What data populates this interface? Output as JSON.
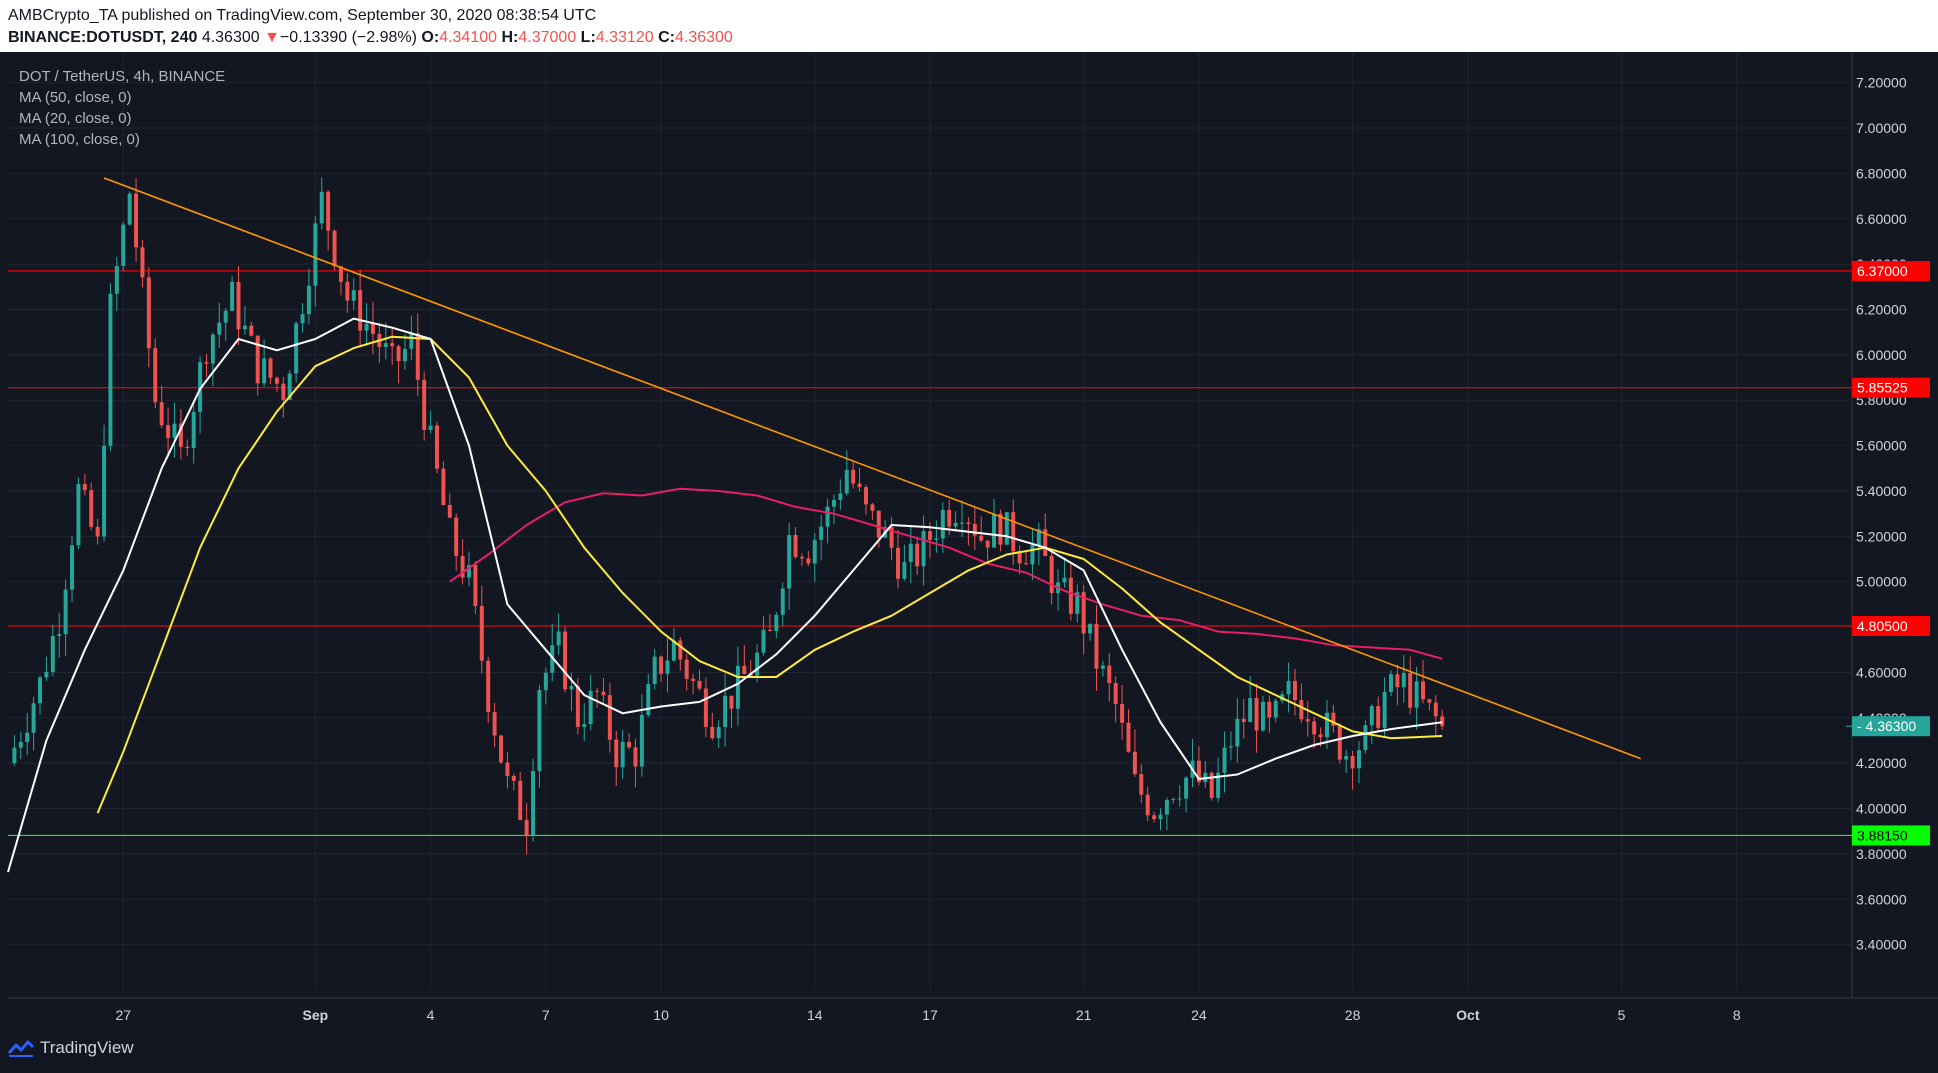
{
  "header": {
    "publisher_line": "AMBCrypto_TA published on TradingView.com, September 30, 2020 08:38:54 UTC",
    "symbol": "BINANCE:DOTUSDT, 240",
    "last": "4.36300",
    "change_arrow": "▼",
    "change": "−0.13390 (−2.98%)",
    "o_label": "O:",
    "o_value": "4.34100",
    "h_label": "H:",
    "h_value": "4.37000",
    "l_label": "L:",
    "l_value": "4.33120",
    "c_label": "C:",
    "c_value": "4.36300"
  },
  "legend": {
    "title": "DOT / TetherUS, 4h, BINANCE",
    "ma_items": [
      "MA (50, close, 0)",
      "MA (20, close, 0)",
      "MA (100, close, 0)"
    ]
  },
  "footer": {
    "brand": "TradingView",
    "logo_icon": "tradingview-logo-icon"
  },
  "colors": {
    "background": "#131722",
    "grid": "#1f2430",
    "axis_text": "#d1d4dc",
    "up": "#26a69a",
    "down": "#ef5350",
    "ma20": "#ffffff",
    "ma50": "#ffeb3b",
    "ma100": "#e91e63",
    "trendline": "#ff9800",
    "resistance": "#ff0000",
    "support": "#00ff00",
    "last_price_badge": "#26a69a"
  },
  "chart_data": {
    "type": "candlestick",
    "y_range": [
      3.2,
      7.3
    ],
    "y_ticks": [
      "7.20000",
      "7.00000",
      "6.80000",
      "6.60000",
      "6.40000",
      "6.20000",
      "6.00000",
      "5.80000",
      "5.60000",
      "5.40000",
      "5.20000",
      "5.00000",
      "4.80000",
      "4.60000",
      "4.40000",
      "4.20000",
      "4.00000",
      "3.80000",
      "3.60000",
      "3.40000"
    ],
    "x_range_days": [
      "2020-08-24",
      "2020-10-11"
    ],
    "x_ticks": [
      {
        "label": "27",
        "date": "2020-08-27"
      },
      {
        "label": "Sep",
        "date": "2020-09-01"
      },
      {
        "label": "4",
        "date": "2020-09-04"
      },
      {
        "label": "7",
        "date": "2020-09-07"
      },
      {
        "label": "10",
        "date": "2020-09-10"
      },
      {
        "label": "14",
        "date": "2020-09-14"
      },
      {
        "label": "17",
        "date": "2020-09-17"
      },
      {
        "label": "21",
        "date": "2020-09-21"
      },
      {
        "label": "24",
        "date": "2020-09-24"
      },
      {
        "label": "28",
        "date": "2020-09-28"
      },
      {
        "label": "Oct",
        "date": "2020-10-01"
      },
      {
        "label": "5",
        "date": "2020-10-05"
      },
      {
        "label": "8",
        "date": "2020-10-08"
      }
    ],
    "horizontal_levels": [
      {
        "price": 6.37,
        "label": "6.37000",
        "kind": "resistance"
      },
      {
        "price": 5.85525,
        "label": "5.85525",
        "kind": "resistance"
      },
      {
        "price": 4.805,
        "label": "4.80500",
        "kind": "resistance"
      },
      {
        "price": 3.8815,
        "label": "3.88150",
        "kind": "support"
      }
    ],
    "last_price": {
      "price": 4.363,
      "label": "4.36300"
    },
    "trendline": [
      [
        "2020-08-26 12:00",
        6.78
      ],
      [
        "2020-10-05 12:00",
        4.22
      ]
    ],
    "close_path": [
      [
        "2020-08-24 00:00",
        4.2
      ],
      [
        "2020-08-24 20:00",
        4.55
      ],
      [
        "2020-08-25 08:00",
        4.85
      ],
      [
        "2020-08-25 20:00",
        5.4
      ],
      [
        "2020-08-26 08:00",
        5.15
      ],
      [
        "2020-08-26 16:00",
        6.2
      ],
      [
        "2020-08-27 04:00",
        6.72
      ],
      [
        "2020-08-27 20:00",
        5.8
      ],
      [
        "2020-08-28 12:00",
        5.55
      ],
      [
        "2020-08-29 04:00",
        6.05
      ],
      [
        "2020-08-29 20:00",
        6.25
      ],
      [
        "2020-08-30 12:00",
        5.95
      ],
      [
        "2020-08-31 04:00",
        5.85
      ],
      [
        "2020-08-31 16:00",
        6.25
      ],
      [
        "2020-09-01 04:00",
        6.68
      ],
      [
        "2020-09-01 20:00",
        6.25
      ],
      [
        "2020-09-02 12:00",
        6.1
      ],
      [
        "2020-09-03 00:00",
        5.95
      ],
      [
        "2020-09-03 12:00",
        6.05
      ],
      [
        "2020-09-04 00:00",
        5.6
      ],
      [
        "2020-09-04 12:00",
        5.2
      ],
      [
        "2020-09-05 00:00",
        5.0
      ],
      [
        "2020-09-05 12:00",
        4.5
      ],
      [
        "2020-09-06 00:00",
        4.1
      ],
      [
        "2020-09-06 12:00",
        3.95
      ],
      [
        "2020-09-06 20:00",
        4.55
      ],
      [
        "2020-09-07 08:00",
        4.7
      ],
      [
        "2020-09-07 20:00",
        4.4
      ],
      [
        "2020-09-08 08:00",
        4.5
      ],
      [
        "2020-09-08 20:00",
        4.25
      ],
      [
        "2020-09-09 08:00",
        4.25
      ],
      [
        "2020-09-09 20:00",
        4.6
      ],
      [
        "2020-09-10 08:00",
        4.72
      ],
      [
        "2020-09-10 20:00",
        4.55
      ],
      [
        "2020-09-11 08:00",
        4.4
      ],
      [
        "2020-09-11 20:00",
        4.5
      ],
      [
        "2020-09-12 08:00",
        4.62
      ],
      [
        "2020-09-12 20:00",
        4.75
      ],
      [
        "2020-09-13 08:00",
        5.2
      ],
      [
        "2020-09-13 20:00",
        5.15
      ],
      [
        "2020-09-14 08:00",
        5.3
      ],
      [
        "2020-09-14 20:00",
        5.5
      ],
      [
        "2020-09-15 08:00",
        5.3
      ],
      [
        "2020-09-15 20:00",
        5.2
      ],
      [
        "2020-09-16 08:00",
        5.05
      ],
      [
        "2020-09-16 20:00",
        5.15
      ],
      [
        "2020-09-17 08:00",
        5.3
      ],
      [
        "2020-09-17 20:00",
        5.35
      ],
      [
        "2020-09-18 08:00",
        5.2
      ],
      [
        "2020-09-18 20:00",
        5.25
      ],
      [
        "2020-09-19 08:00",
        5.15
      ],
      [
        "2020-09-19 20:00",
        5.15
      ],
      [
        "2020-09-20 08:00",
        4.95
      ],
      [
        "2020-09-20 20:00",
        4.9
      ],
      [
        "2020-09-21 08:00",
        4.65
      ],
      [
        "2020-09-21 20:00",
        4.45
      ],
      [
        "2020-09-22 08:00",
        4.1
      ],
      [
        "2020-09-22 20:00",
        4.0
      ],
      [
        "2020-09-23 08:00",
        4.1
      ],
      [
        "2020-09-23 20:00",
        4.15
      ],
      [
        "2020-09-24 08:00",
        4.05
      ],
      [
        "2020-09-24 20:00",
        4.3
      ],
      [
        "2020-09-25 08:00",
        4.45
      ],
      [
        "2020-09-25 20:00",
        4.35
      ],
      [
        "2020-09-26 08:00",
        4.5
      ],
      [
        "2020-09-26 20:00",
        4.45
      ],
      [
        "2020-09-27 08:00",
        4.35
      ],
      [
        "2020-09-27 20:00",
        4.25
      ],
      [
        "2020-09-28 08:00",
        4.3
      ],
      [
        "2020-09-28 20:00",
        4.5
      ],
      [
        "2020-09-29 08:00",
        4.55
      ],
      [
        "2020-09-29 20:00",
        4.45
      ],
      [
        "2020-09-30 08:00",
        4.363
      ]
    ],
    "ma20": [
      [
        "2020-08-24 00:00",
        3.72
      ],
      [
        "2020-08-25 00:00",
        4.3
      ],
      [
        "2020-08-26 00:00",
        4.7
      ],
      [
        "2020-08-27 00:00",
        5.05
      ],
      [
        "2020-08-28 00:00",
        5.5
      ],
      [
        "2020-08-29 00:00",
        5.85
      ],
      [
        "2020-08-30 00:00",
        6.07
      ],
      [
        "2020-08-31 00:00",
        6.02
      ],
      [
        "2020-09-01 00:00",
        6.07
      ],
      [
        "2020-09-02 00:00",
        6.16
      ],
      [
        "2020-09-03 00:00",
        6.12
      ],
      [
        "2020-09-04 00:00",
        6.07
      ],
      [
        "2020-09-05 00:00",
        5.6
      ],
      [
        "2020-09-06 00:00",
        4.9
      ],
      [
        "2020-09-07 00:00",
        4.7
      ],
      [
        "2020-09-08 00:00",
        4.5
      ],
      [
        "2020-09-09 00:00",
        4.42
      ],
      [
        "2020-09-10 00:00",
        4.45
      ],
      [
        "2020-09-11 00:00",
        4.47
      ],
      [
        "2020-09-12 00:00",
        4.55
      ],
      [
        "2020-09-13 00:00",
        4.68
      ],
      [
        "2020-09-14 00:00",
        4.85
      ],
      [
        "2020-09-15 00:00",
        5.05
      ],
      [
        "2020-09-16 00:00",
        5.25
      ],
      [
        "2020-09-17 00:00",
        5.24
      ],
      [
        "2020-09-18 00:00",
        5.22
      ],
      [
        "2020-09-19 00:00",
        5.2
      ],
      [
        "2020-09-20 00:00",
        5.15
      ],
      [
        "2020-09-21 00:00",
        5.05
      ],
      [
        "2020-09-22 00:00",
        4.7
      ],
      [
        "2020-09-23 00:00",
        4.38
      ],
      [
        "2020-09-24 00:00",
        4.13
      ],
      [
        "2020-09-25 00:00",
        4.15
      ],
      [
        "2020-09-26 00:00",
        4.22
      ],
      [
        "2020-09-27 00:00",
        4.28
      ],
      [
        "2020-09-28 00:00",
        4.32
      ],
      [
        "2020-09-29 00:00",
        4.35
      ],
      [
        "2020-09-30 08:00",
        4.38
      ]
    ],
    "ma50": [
      [
        "2020-08-26 08:00",
        3.98
      ],
      [
        "2020-08-27 00:00",
        4.25
      ],
      [
        "2020-08-28 00:00",
        4.7
      ],
      [
        "2020-08-29 00:00",
        5.15
      ],
      [
        "2020-08-30 00:00",
        5.5
      ],
      [
        "2020-08-31 00:00",
        5.75
      ],
      [
        "2020-09-01 00:00",
        5.95
      ],
      [
        "2020-09-02 00:00",
        6.03
      ],
      [
        "2020-09-03 00:00",
        6.08
      ],
      [
        "2020-09-04 00:00",
        6.07
      ],
      [
        "2020-09-05 00:00",
        5.9
      ],
      [
        "2020-09-06 00:00",
        5.6
      ],
      [
        "2020-09-07 00:00",
        5.4
      ],
      [
        "2020-09-08 00:00",
        5.15
      ],
      [
        "2020-09-09 00:00",
        4.95
      ],
      [
        "2020-09-10 00:00",
        4.78
      ],
      [
        "2020-09-11 00:00",
        4.65
      ],
      [
        "2020-09-12 00:00",
        4.58
      ],
      [
        "2020-09-13 00:00",
        4.58
      ],
      [
        "2020-09-14 00:00",
        4.7
      ],
      [
        "2020-09-15 00:00",
        4.78
      ],
      [
        "2020-09-16 00:00",
        4.85
      ],
      [
        "2020-09-17 00:00",
        4.95
      ],
      [
        "2020-09-18 00:00",
        5.05
      ],
      [
        "2020-09-19 00:00",
        5.12
      ],
      [
        "2020-09-20 00:00",
        5.15
      ],
      [
        "2020-09-21 00:00",
        5.1
      ],
      [
        "2020-09-22 00:00",
        4.97
      ],
      [
        "2020-09-23 00:00",
        4.82
      ],
      [
        "2020-09-24 00:00",
        4.7
      ],
      [
        "2020-09-25 00:00",
        4.58
      ],
      [
        "2020-09-26 00:00",
        4.5
      ],
      [
        "2020-09-27 00:00",
        4.42
      ],
      [
        "2020-09-28 00:00",
        4.34
      ],
      [
        "2020-09-29 00:00",
        4.31
      ],
      [
        "2020-09-30 08:00",
        4.32
      ]
    ],
    "ma100": [
      [
        "2020-09-04 12:00",
        5.0
      ],
      [
        "2020-09-05 12:00",
        5.12
      ],
      [
        "2020-09-06 12:00",
        5.25
      ],
      [
        "2020-09-07 12:00",
        5.35
      ],
      [
        "2020-09-08 12:00",
        5.39
      ],
      [
        "2020-09-09 12:00",
        5.38
      ],
      [
        "2020-09-10 12:00",
        5.41
      ],
      [
        "2020-09-11 12:00",
        5.4
      ],
      [
        "2020-09-12 12:00",
        5.38
      ],
      [
        "2020-09-13 12:00",
        5.33
      ],
      [
        "2020-09-14 12:00",
        5.3
      ],
      [
        "2020-09-15 12:00",
        5.25
      ],
      [
        "2020-09-16 12:00",
        5.2
      ],
      [
        "2020-09-17 12:00",
        5.15
      ],
      [
        "2020-09-18 12:00",
        5.08
      ],
      [
        "2020-09-19 12:00",
        5.04
      ],
      [
        "2020-09-20 12:00",
        4.96
      ],
      [
        "2020-09-21 12:00",
        4.9
      ],
      [
        "2020-09-22 12:00",
        4.85
      ],
      [
        "2020-09-23 12:00",
        4.83
      ],
      [
        "2020-09-24 12:00",
        4.78
      ],
      [
        "2020-09-25 12:00",
        4.77
      ],
      [
        "2020-09-26 12:00",
        4.75
      ],
      [
        "2020-09-27 12:00",
        4.72
      ],
      [
        "2020-09-28 12:00",
        4.71
      ],
      [
        "2020-09-29 12:00",
        4.7
      ],
      [
        "2020-09-30 08:00",
        4.66
      ]
    ]
  }
}
